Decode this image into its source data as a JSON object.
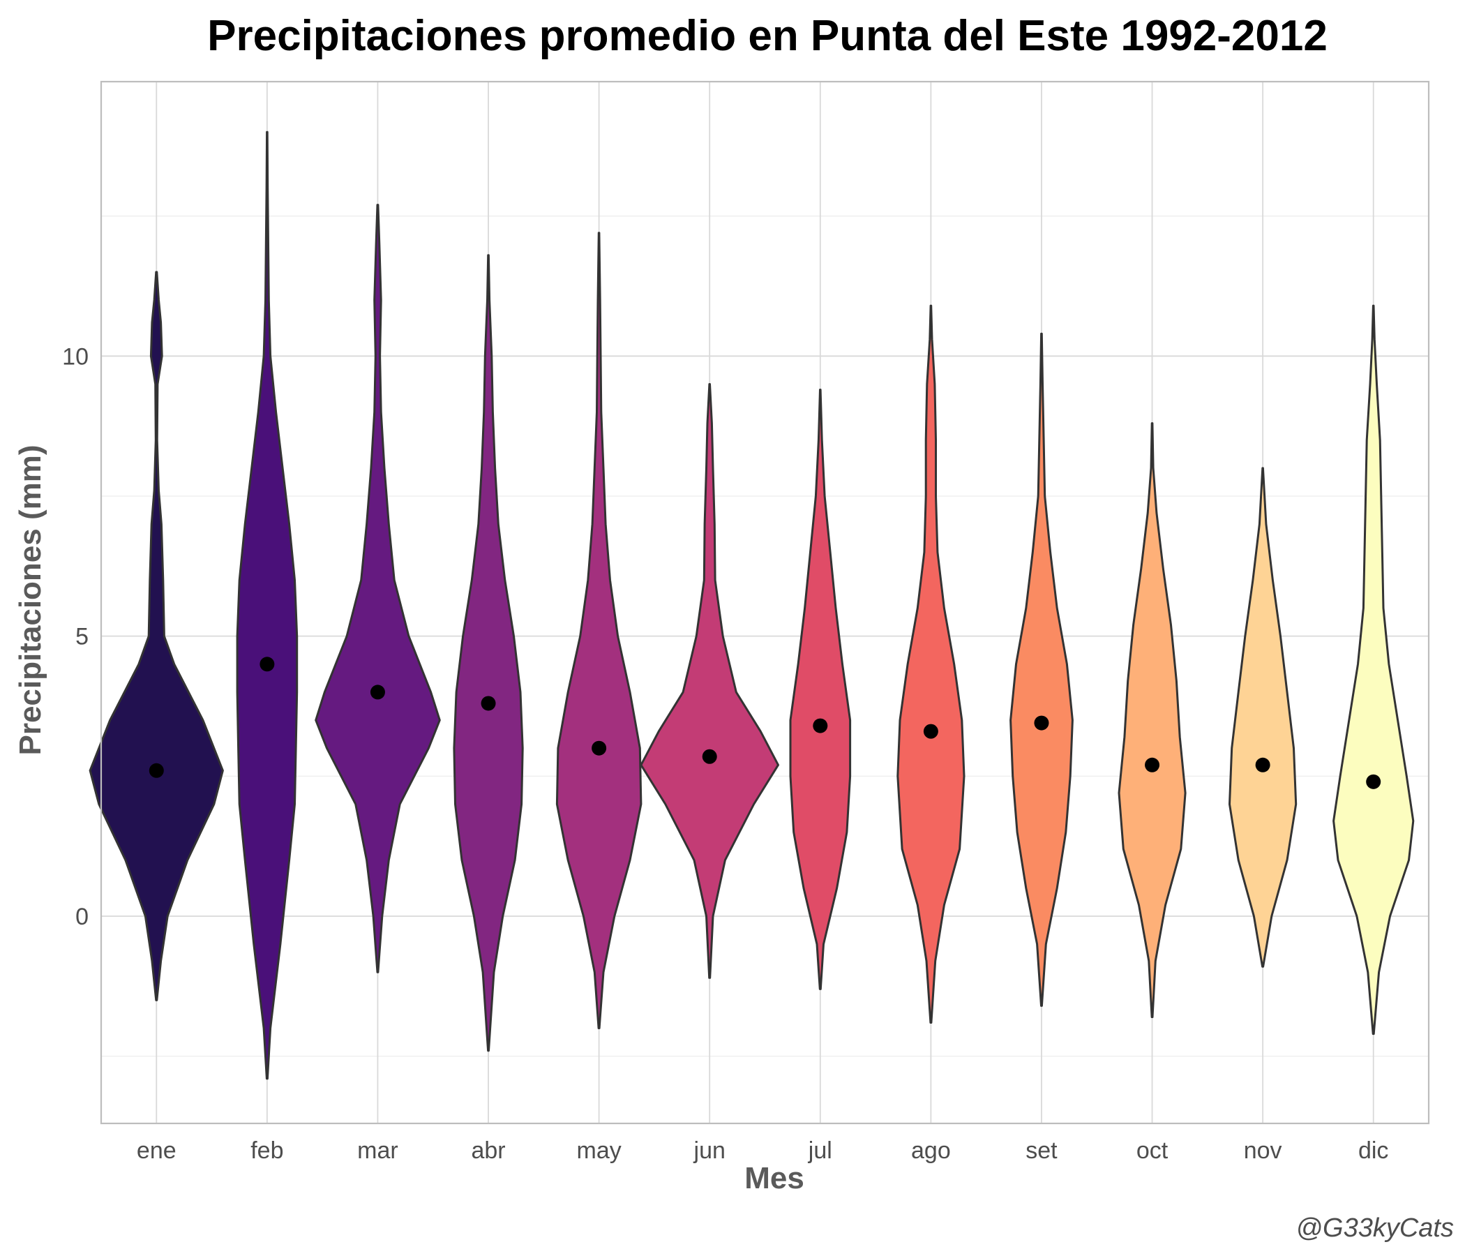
{
  "chart_data": {
    "type": "violin",
    "title": "Precipitaciones promedio en Punta del Este 1992-2012",
    "xlabel": "Mes",
    "ylabel": "Precipitaciones (mm)",
    "caption": "@G33kyCats",
    "categories": [
      "ene",
      "feb",
      "mar",
      "abr",
      "may",
      "jun",
      "jul",
      "ago",
      "set",
      "oct",
      "nov",
      "dic"
    ],
    "y_ticks": [
      0,
      5,
      10
    ],
    "ylim": [
      -3.7,
      14.9
    ],
    "grid": true,
    "legend": "none",
    "colors": [
      "#221150",
      "#4a1079",
      "#651a80",
      "#822681",
      "#a3307e",
      "#c33c75",
      "#e04c67",
      "#f3665f",
      "#fa8b62",
      "#feb078",
      "#fed395",
      "#fcfdbf"
    ],
    "points": [
      2.6,
      4.5,
      4.0,
      3.8,
      3.0,
      2.85,
      3.4,
      3.3,
      3.45,
      2.7,
      2.7,
      2.4
    ],
    "violins": [
      {
        "min": -1.5,
        "max": 11.5,
        "half_widths": [
          [
            -1.5,
            0.003
          ],
          [
            -0.8,
            0.04
          ],
          [
            0.0,
            0.1
          ],
          [
            1.0,
            0.28
          ],
          [
            2.0,
            0.52
          ],
          [
            2.6,
            0.6
          ],
          [
            3.5,
            0.42
          ],
          [
            4.5,
            0.16
          ],
          [
            5.0,
            0.07
          ],
          [
            6.0,
            0.06
          ],
          [
            7.0,
            0.045
          ],
          [
            7.6,
            0.02
          ],
          [
            8.5,
            0.006
          ],
          [
            9.5,
            0.01
          ],
          [
            10.0,
            0.05
          ],
          [
            10.6,
            0.04
          ],
          [
            11.0,
            0.02
          ],
          [
            11.5,
            0.003
          ]
        ]
      },
      {
        "min": -2.9,
        "max": 14.0,
        "half_widths": [
          [
            -2.9,
            0.003
          ],
          [
            -2.0,
            0.03
          ],
          [
            -0.5,
            0.12
          ],
          [
            1.0,
            0.2
          ],
          [
            2.0,
            0.25
          ],
          [
            3.0,
            0.26
          ],
          [
            4.0,
            0.27
          ],
          [
            5.0,
            0.27
          ],
          [
            6.0,
            0.25
          ],
          [
            7.0,
            0.2
          ],
          [
            8.0,
            0.14
          ],
          [
            9.0,
            0.08
          ],
          [
            10.0,
            0.03
          ],
          [
            11.0,
            0.015
          ],
          [
            12.0,
            0.01
          ],
          [
            13.0,
            0.005
          ],
          [
            14.0,
            0.002
          ]
        ]
      },
      {
        "min": -1.0,
        "max": 12.7,
        "half_widths": [
          [
            -1.0,
            0.003
          ],
          [
            0.0,
            0.04
          ],
          [
            1.0,
            0.1
          ],
          [
            2.0,
            0.2
          ],
          [
            3.0,
            0.46
          ],
          [
            3.5,
            0.56
          ],
          [
            4.0,
            0.48
          ],
          [
            5.0,
            0.28
          ],
          [
            6.0,
            0.15
          ],
          [
            7.0,
            0.1
          ],
          [
            8.0,
            0.06
          ],
          [
            9.0,
            0.03
          ],
          [
            10.0,
            0.02
          ],
          [
            11.0,
            0.03
          ],
          [
            12.0,
            0.015
          ],
          [
            12.7,
            0.003
          ]
        ]
      },
      {
        "min": -2.4,
        "max": 11.8,
        "half_widths": [
          [
            -2.4,
            0.003
          ],
          [
            -1.0,
            0.05
          ],
          [
            0.0,
            0.13
          ],
          [
            1.0,
            0.24
          ],
          [
            2.0,
            0.3
          ],
          [
            3.0,
            0.31
          ],
          [
            4.0,
            0.29
          ],
          [
            5.0,
            0.23
          ],
          [
            6.0,
            0.15
          ],
          [
            7.0,
            0.09
          ],
          [
            8.0,
            0.06
          ],
          [
            9.0,
            0.04
          ],
          [
            10.0,
            0.03
          ],
          [
            11.0,
            0.01
          ],
          [
            11.8,
            0.002
          ]
        ]
      },
      {
        "min": -2.0,
        "max": 12.2,
        "half_widths": [
          [
            -2.0,
            0.003
          ],
          [
            -1.0,
            0.04
          ],
          [
            0.0,
            0.14
          ],
          [
            1.0,
            0.28
          ],
          [
            2.0,
            0.38
          ],
          [
            3.0,
            0.37
          ],
          [
            4.0,
            0.28
          ],
          [
            5.0,
            0.17
          ],
          [
            6.0,
            0.1
          ],
          [
            7.0,
            0.06
          ],
          [
            8.0,
            0.04
          ],
          [
            9.0,
            0.02
          ],
          [
            10.0,
            0.015
          ],
          [
            11.0,
            0.01
          ],
          [
            12.2,
            0.002
          ]
        ]
      },
      {
        "min": -1.1,
        "max": 9.5,
        "half_widths": [
          [
            -1.1,
            0.003
          ],
          [
            0.0,
            0.03
          ],
          [
            1.0,
            0.14
          ],
          [
            2.0,
            0.4
          ],
          [
            2.7,
            0.62
          ],
          [
            3.3,
            0.46
          ],
          [
            4.0,
            0.24
          ],
          [
            5.0,
            0.12
          ],
          [
            6.0,
            0.05
          ],
          [
            7.0,
            0.045
          ],
          [
            8.0,
            0.03
          ],
          [
            8.8,
            0.02
          ],
          [
            9.5,
            0.002
          ]
        ]
      },
      {
        "min": -1.3,
        "max": 9.4,
        "half_widths": [
          [
            -1.3,
            0.003
          ],
          [
            -0.5,
            0.03
          ],
          [
            0.5,
            0.15
          ],
          [
            1.5,
            0.24
          ],
          [
            2.5,
            0.27
          ],
          [
            3.5,
            0.27
          ],
          [
            4.5,
            0.2
          ],
          [
            5.5,
            0.14
          ],
          [
            6.5,
            0.09
          ],
          [
            7.5,
            0.04
          ],
          [
            8.5,
            0.015
          ],
          [
            9.4,
            0.002
          ]
        ]
      },
      {
        "min": -1.9,
        "max": 10.9,
        "half_widths": [
          [
            -1.9,
            0.003
          ],
          [
            -0.8,
            0.04
          ],
          [
            0.2,
            0.12
          ],
          [
            1.2,
            0.26
          ],
          [
            2.5,
            0.3
          ],
          [
            3.5,
            0.28
          ],
          [
            4.5,
            0.21
          ],
          [
            5.5,
            0.12
          ],
          [
            6.5,
            0.06
          ],
          [
            7.5,
            0.045
          ],
          [
            8.5,
            0.045
          ],
          [
            9.5,
            0.035
          ],
          [
            10.3,
            0.01
          ],
          [
            10.9,
            0.002
          ]
        ]
      },
      {
        "min": -1.6,
        "max": 10.4,
        "half_widths": [
          [
            -1.6,
            0.003
          ],
          [
            -0.5,
            0.04
          ],
          [
            0.5,
            0.14
          ],
          [
            1.5,
            0.22
          ],
          [
            2.5,
            0.26
          ],
          [
            3.5,
            0.28
          ],
          [
            4.5,
            0.23
          ],
          [
            5.5,
            0.14
          ],
          [
            6.5,
            0.08
          ],
          [
            7.5,
            0.03
          ],
          [
            8.5,
            0.02
          ],
          [
            9.5,
            0.01
          ],
          [
            10.4,
            0.002
          ]
        ]
      },
      {
        "min": -1.8,
        "max": 8.8,
        "half_widths": [
          [
            -1.8,
            0.003
          ],
          [
            -0.8,
            0.03
          ],
          [
            0.2,
            0.12
          ],
          [
            1.2,
            0.26
          ],
          [
            2.2,
            0.3
          ],
          [
            3.2,
            0.25
          ],
          [
            4.2,
            0.22
          ],
          [
            5.2,
            0.17
          ],
          [
            6.2,
            0.1
          ],
          [
            7.2,
            0.04
          ],
          [
            8.0,
            0.01
          ],
          [
            8.8,
            0.002
          ]
        ]
      },
      {
        "min": -0.9,
        "max": 8.0,
        "half_widths": [
          [
            -0.9,
            0.003
          ],
          [
            0.0,
            0.08
          ],
          [
            1.0,
            0.22
          ],
          [
            2.0,
            0.3
          ],
          [
            3.0,
            0.28
          ],
          [
            4.0,
            0.22
          ],
          [
            5.0,
            0.16
          ],
          [
            6.0,
            0.09
          ],
          [
            7.0,
            0.03
          ],
          [
            8.0,
            0.002
          ]
        ]
      },
      {
        "min": -2.1,
        "max": 10.9,
        "half_widths": [
          [
            -2.1,
            0.003
          ],
          [
            -1.0,
            0.05
          ],
          [
            0.0,
            0.15
          ],
          [
            1.0,
            0.32
          ],
          [
            1.7,
            0.36
          ],
          [
            2.5,
            0.3
          ],
          [
            3.5,
            0.22
          ],
          [
            4.5,
            0.14
          ],
          [
            5.5,
            0.09
          ],
          [
            6.5,
            0.08
          ],
          [
            7.5,
            0.07
          ],
          [
            8.5,
            0.06
          ],
          [
            9.5,
            0.03
          ],
          [
            10.3,
            0.01
          ],
          [
            10.9,
            0.002
          ]
        ]
      }
    ]
  }
}
